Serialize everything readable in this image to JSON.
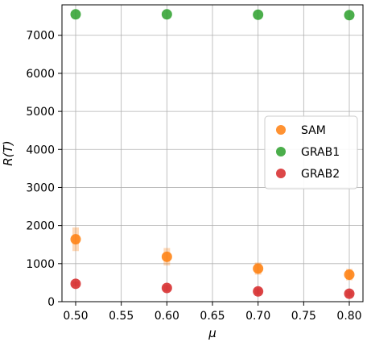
{
  "chart_data": {
    "type": "scatter",
    "xlabel": "μ",
    "ylabel": "R(T)",
    "xlim": [
      0.485,
      0.815
    ],
    "ylim": [
      0,
      7800
    ],
    "xticks": [
      0.5,
      0.55,
      0.6,
      0.65,
      0.7,
      0.75,
      0.8
    ],
    "xtick_labels": [
      "0.50",
      "0.55",
      "0.60",
      "0.65",
      "0.70",
      "0.75",
      "0.80"
    ],
    "yticks": [
      0,
      1000,
      2000,
      3000,
      4000,
      5000,
      6000,
      7000
    ],
    "ytick_labels": [
      "0",
      "1000",
      "2000",
      "3000",
      "4000",
      "5000",
      "6000",
      "7000"
    ],
    "grid": true,
    "legend_position": "center-right",
    "x": [
      0.5,
      0.6,
      0.7,
      0.8
    ],
    "series": [
      {
        "name": "SAM",
        "color": "#ff7f0e",
        "values": [
          1640,
          1180,
          870,
          710
        ],
        "errors": [
          310,
          230,
          160,
          150
        ]
      },
      {
        "name": "GRAB1",
        "color": "#2ca02c",
        "values": [
          7550,
          7550,
          7540,
          7530
        ],
        "errors": [
          0,
          0,
          0,
          0
        ]
      },
      {
        "name": "GRAB2",
        "color": "#d62728",
        "values": [
          470,
          360,
          270,
          210
        ],
        "errors": [
          60,
          80,
          80,
          70
        ]
      }
    ]
  }
}
